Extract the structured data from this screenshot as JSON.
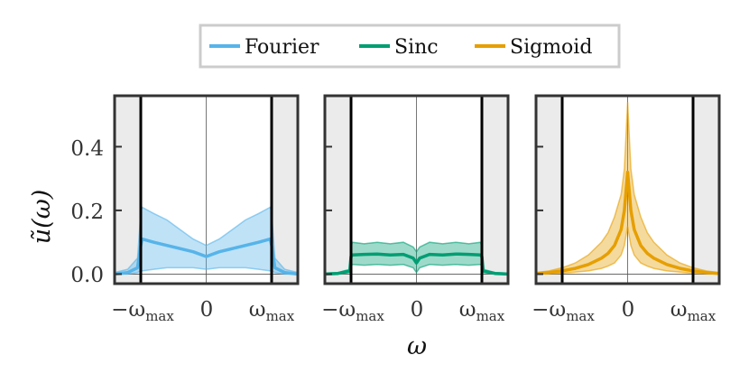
{
  "legend": {
    "position": "top-center",
    "entries": [
      {
        "label": "Fourier",
        "color": "#56b4e9"
      },
      {
        "label": "Sinc",
        "color": "#009e73"
      },
      {
        "label": "Sigmoid",
        "color": "#e69f00"
      }
    ]
  },
  "axes": {
    "ylabel": "ũ(ω)",
    "xlabel": "ω",
    "yticks": [
      "0.0",
      "0.2",
      "0.4"
    ],
    "xticks": [
      "−ω",
      "0",
      "ω"
    ],
    "xtick_subscript": "max"
  },
  "chart_data": [
    {
      "type": "line",
      "series_name": "Fourier",
      "color": "#56b4e9",
      "ylim": [
        -0.03,
        0.56
      ],
      "xlim": [
        -1.4,
        1.4
      ],
      "omega_max": 1.0,
      "x": [
        -1.4,
        -1.2,
        -1.05,
        -1.0,
        -0.98,
        -0.8,
        -0.6,
        -0.4,
        -0.2,
        0.0,
        0.2,
        0.4,
        0.6,
        0.8,
        0.98,
        1.0,
        1.05,
        1.2,
        1.4
      ],
      "mean": [
        0.0,
        0.005,
        0.02,
        0.09,
        0.11,
        0.1,
        0.09,
        0.08,
        0.07,
        0.055,
        0.07,
        0.08,
        0.09,
        0.1,
        0.11,
        0.09,
        0.02,
        0.005,
        0.0
      ],
      "upper": [
        0.005,
        0.015,
        0.05,
        0.19,
        0.21,
        0.19,
        0.17,
        0.14,
        0.11,
        0.09,
        0.11,
        0.14,
        0.17,
        0.19,
        0.21,
        0.19,
        0.05,
        0.015,
        0.005
      ],
      "lower": [
        0.0,
        0.0,
        0.005,
        0.01,
        0.01,
        0.015,
        0.02,
        0.02,
        0.02,
        0.015,
        0.02,
        0.02,
        0.02,
        0.015,
        0.01,
        0.01,
        0.005,
        0.0,
        0.0
      ]
    },
    {
      "type": "line",
      "series_name": "Sinc",
      "color": "#009e73",
      "ylim": [
        -0.03,
        0.56
      ],
      "xlim": [
        -1.4,
        1.4
      ],
      "omega_max": 1.0,
      "x": [
        -1.4,
        -1.2,
        -1.02,
        -1.0,
        -0.98,
        -0.8,
        -0.6,
        -0.4,
        -0.2,
        -0.05,
        0.0,
        0.05,
        0.2,
        0.4,
        0.6,
        0.8,
        0.98,
        1.0,
        1.02,
        1.2,
        1.4
      ],
      "mean": [
        0.0,
        0.002,
        0.01,
        0.055,
        0.06,
        0.062,
        0.063,
        0.06,
        0.062,
        0.05,
        0.035,
        0.05,
        0.062,
        0.06,
        0.063,
        0.062,
        0.06,
        0.055,
        0.01,
        0.002,
        0.0
      ],
      "upper": [
        0.003,
        0.005,
        0.015,
        0.085,
        0.1,
        0.095,
        0.1,
        0.095,
        0.1,
        0.085,
        0.07,
        0.085,
        0.1,
        0.095,
        0.1,
        0.095,
        0.1,
        0.085,
        0.015,
        0.005,
        0.003
      ],
      "lower": [
        0.0,
        0.0,
        0.005,
        0.025,
        0.03,
        0.028,
        0.03,
        0.028,
        0.03,
        0.02,
        0.005,
        0.02,
        0.03,
        0.028,
        0.03,
        0.028,
        0.03,
        0.025,
        0.005,
        0.0,
        0.0
      ]
    },
    {
      "type": "line",
      "series_name": "Sigmoid",
      "color": "#e69f00",
      "ylim": [
        -0.03,
        0.56
      ],
      "xlim": [
        -1.4,
        1.4
      ],
      "omega_max": 1.0,
      "x": [
        -1.4,
        -1.2,
        -1.0,
        -0.8,
        -0.6,
        -0.4,
        -0.3,
        -0.2,
        -0.1,
        -0.05,
        0.0,
        0.05,
        0.1,
        0.2,
        0.3,
        0.4,
        0.6,
        0.8,
        1.0,
        1.2,
        1.4
      ],
      "mean": [
        0.002,
        0.005,
        0.01,
        0.018,
        0.03,
        0.05,
        0.065,
        0.09,
        0.14,
        0.2,
        0.32,
        0.2,
        0.14,
        0.09,
        0.065,
        0.05,
        0.03,
        0.018,
        0.01,
        0.005,
        0.002
      ],
      "upper": [
        0.005,
        0.01,
        0.02,
        0.035,
        0.06,
        0.1,
        0.13,
        0.18,
        0.25,
        0.33,
        0.54,
        0.33,
        0.25,
        0.18,
        0.13,
        0.1,
        0.06,
        0.035,
        0.02,
        0.01,
        0.005
      ],
      "lower": [
        0.0,
        0.001,
        0.003,
        0.006,
        0.01,
        0.018,
        0.025,
        0.035,
        0.06,
        0.09,
        0.15,
        0.09,
        0.06,
        0.035,
        0.025,
        0.018,
        0.01,
        0.006,
        0.003,
        0.001,
        0.0
      ]
    }
  ]
}
